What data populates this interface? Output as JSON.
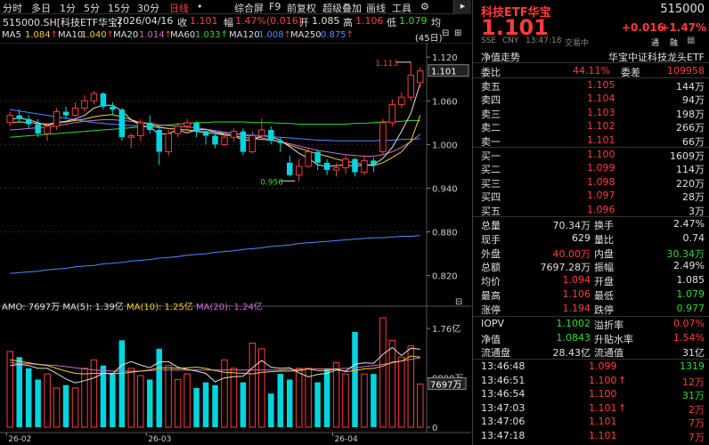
{
  "menu": {
    "items": [
      "分时",
      "多日",
      "1分",
      "5分",
      "15分",
      "30分",
      "日线",
      "•"
    ],
    "right_items": [
      "综合屏",
      "F9",
      "前复权",
      "超级叠加",
      "画线",
      "工具"
    ],
    "gear_icon": "gear-icon"
  },
  "info": {
    "name": "515000.SH[科技ETF华宝]",
    "date": "2026/04/16",
    "close_label": "收",
    "close": "1.101",
    "change_label": "幅",
    "change": "1.47%(0.016)",
    "open_label": "开",
    "open": "1.085",
    "high_label": "高",
    "high": "1.106",
    "low_label": "低",
    "low": "1.079",
    "avg_label": "均"
  },
  "ma": {
    "ma5": "MA5",
    "ma5_val": "1.084",
    "ma10": "MA10",
    "ma10_val": "1.040",
    "ma20": "MA20",
    "ma20_val": "1.014",
    "ma60": "MA60",
    "ma60_val": "1.033",
    "ma120": "MA120",
    "ma120_val": "1.008",
    "ma250": "MA250",
    "ma250_val": "0.875",
    "days": "(45日)"
  },
  "price_axis": [
    "1.120",
    "1.101",
    "1.060",
    "1.000",
    "0.940",
    "0.880",
    "0.820"
  ],
  "annot_high": "1.113",
  "annot_low": "0.956",
  "vol": {
    "label": "AMO: 7697万",
    "ma5": "MA(5): 1.39亿",
    "ma10": "MA(10): 1.25亿",
    "ma20": "MA(20): 1.24亿",
    "axis": [
      "1.76亿",
      "8800万",
      "0"
    ],
    "current": "7697万"
  },
  "date_axis": [
    "26-02",
    "26-03",
    "26-04"
  ],
  "chart_data": {
    "type": "candlestick",
    "ylim": [
      0.8,
      1.13
    ],
    "candles": [
      [
        1.03,
        1.04,
        1.045,
        1.025
      ],
      [
        1.04,
        1.035,
        1.048,
        1.03
      ],
      [
        1.035,
        1.028,
        1.04,
        1.022
      ],
      [
        1.028,
        1.015,
        1.035,
        1.01
      ],
      [
        1.015,
        1.025,
        1.03,
        1.005
      ],
      [
        1.025,
        1.045,
        1.05,
        1.02
      ],
      [
        1.045,
        1.04,
        1.052,
        1.035
      ],
      [
        1.04,
        1.05,
        1.058,
        1.038
      ],
      [
        1.05,
        1.06,
        1.068,
        1.045
      ],
      [
        1.06,
        1.07,
        1.073,
        1.055
      ],
      [
        1.07,
        1.052,
        1.072,
        1.048
      ],
      [
        1.052,
        1.048,
        1.058,
        1.04
      ],
      [
        1.048,
        1.01,
        1.05,
        1.005
      ],
      [
        1.01,
        1.012,
        1.015,
        0.995
      ],
      [
        1.012,
        1.03,
        1.035,
        1.005
      ],
      [
        1.03,
        1.02,
        1.04,
        1.015
      ],
      [
        1.02,
        0.99,
        1.025,
        0.972
      ],
      [
        0.99,
        1.015,
        1.02,
        0.985
      ],
      [
        1.015,
        1.025,
        1.03,
        1.01
      ],
      [
        1.025,
        1.03,
        1.035,
        1.018
      ],
      [
        1.03,
        1.018,
        1.032,
        1.01
      ],
      [
        1.018,
        1.012,
        1.022,
        1.0
      ],
      [
        1.012,
        1.0,
        1.02,
        0.995
      ],
      [
        1.0,
        1.01,
        1.015,
        0.998
      ],
      [
        1.01,
        1.018,
        1.022,
        1.005
      ],
      [
        1.018,
        0.99,
        1.022,
        0.985
      ],
      [
        0.99,
        1.012,
        1.018,
        0.988
      ],
      [
        1.012,
        1.02,
        1.036,
        1.008
      ],
      [
        1.02,
        1.005,
        1.025,
        1.0
      ],
      [
        1.005,
        1.002,
        1.01,
        0.99
      ],
      [
        0.975,
        0.958,
        0.985,
        0.956
      ],
      [
        0.958,
        0.97,
        0.98,
        0.95
      ],
      [
        0.97,
        0.99,
        0.995,
        0.968
      ],
      [
        0.99,
        0.975,
        0.992,
        0.965
      ],
      [
        0.975,
        0.965,
        0.98,
        0.958
      ],
      [
        0.965,
        0.968,
        0.975,
        0.956
      ],
      [
        0.968,
        0.98,
        0.985,
        0.96
      ],
      [
        0.98,
        0.962,
        0.982,
        0.956
      ],
      [
        0.962,
        0.978,
        0.985,
        0.958
      ],
      [
        0.978,
        0.972,
        0.982,
        0.962
      ],
      [
        0.99,
        1.03,
        1.035,
        0.985
      ],
      [
        1.03,
        1.055,
        1.062,
        1.025
      ],
      [
        1.055,
        1.065,
        1.072,
        1.05
      ],
      [
        1.065,
        1.095,
        1.113,
        1.06
      ],
      [
        1.085,
        1.101,
        1.106,
        1.079
      ]
    ],
    "volume": [
      1.35,
      1.25,
      1.05,
      0.85,
      0.95,
      0.7,
      0.75,
      0.7,
      1.05,
      1.2,
      1.1,
      0.95,
      1.55,
      1.05,
      0.92,
      0.85,
      1.4,
      1.1,
      0.85,
      0.95,
      0.7,
      0.8,
      0.75,
      1.2,
      1.05,
      0.8,
      1.5,
      1.4,
      0.6,
      0.95,
      0.85,
      1.05,
      1.05,
      0.8,
      1.05,
      1.15,
      0.95,
      1.7,
      0.95,
      0.95,
      1.95,
      1.55,
      1.25,
      1.45,
      0.77
    ],
    "ma5": [
      1.035,
      1.036,
      1.034,
      1.03,
      1.026,
      1.03,
      1.032,
      1.035,
      1.04,
      1.05,
      1.054,
      1.054,
      1.046,
      1.034,
      1.026,
      1.024,
      1.014,
      1.015,
      1.02,
      1.016,
      1.02,
      1.021,
      1.017,
      1.014,
      1.012,
      1.006,
      1.006,
      1.012,
      1.011,
      1.006,
      0.997,
      0.988,
      0.981,
      0.972,
      0.97,
      0.971,
      0.972,
      0.97,
      0.972,
      0.972,
      0.981,
      0.996,
      1.018,
      1.043,
      1.084
    ],
    "ma10": [
      1.03,
      1.031,
      1.03,
      1.029,
      1.028,
      1.03,
      1.031,
      1.033,
      1.035,
      1.038,
      1.04,
      1.041,
      1.038,
      1.034,
      1.03,
      1.028,
      1.024,
      1.022,
      1.021,
      1.02,
      1.018,
      1.016,
      1.015,
      1.013,
      1.012,
      1.01,
      1.008,
      1.007,
      1.006,
      1.004,
      0.999,
      0.995,
      0.991,
      0.987,
      0.984,
      0.98,
      0.977,
      0.975,
      0.972,
      0.971,
      0.975,
      0.982,
      0.99,
      1.005,
      1.04
    ],
    "ma20": [
      1.02,
      1.021,
      1.022,
      1.023,
      1.024,
      1.026,
      1.028,
      1.03,
      1.032,
      1.033,
      1.034,
      1.034,
      1.033,
      1.032,
      1.03,
      1.029,
      1.027,
      1.026,
      1.025,
      1.024,
      1.023,
      1.021,
      1.019,
      1.017,
      1.015,
      1.013,
      1.011,
      1.009,
      1.007,
      1.004,
      1.001,
      0.998,
      0.995,
      0.992,
      0.99,
      0.988,
      0.986,
      0.985,
      0.984,
      0.984,
      0.986,
      0.99,
      0.996,
      1.004,
      1.014
    ],
    "ma60": [
      1.01,
      1.011,
      1.012,
      1.013,
      1.014,
      1.015,
      1.016,
      1.017,
      1.018,
      1.019,
      1.02,
      1.021,
      1.022,
      1.023,
      1.024,
      1.025,
      1.026,
      1.027,
      1.028,
      1.029,
      1.03,
      1.03,
      1.031,
      1.031,
      1.031,
      1.031,
      1.03,
      1.03,
      1.03,
      1.029,
      1.029,
      1.028,
      1.028,
      1.028,
      1.028,
      1.028,
      1.028,
      1.029,
      1.029,
      1.03,
      1.031,
      1.031,
      1.032,
      1.033,
      1.033
    ],
    "ma120": [
      1.048,
      1.046,
      1.044,
      1.042,
      1.04,
      1.038,
      1.036,
      1.034,
      1.032,
      1.03,
      1.029,
      1.028,
      1.027,
      1.026,
      1.025,
      1.024,
      1.023,
      1.022,
      1.021,
      1.02,
      1.019,
      1.018,
      1.017,
      1.016,
      1.015,
      1.014,
      1.013,
      1.012,
      1.011,
      1.01,
      1.009,
      1.008,
      1.007,
      1.006,
      1.006,
      1.005,
      1.005,
      1.005,
      1.005,
      1.005,
      1.006,
      1.006,
      1.007,
      1.007,
      1.008
    ],
    "ma250": [
      0.823,
      0.824,
      0.825,
      0.826,
      0.828,
      0.829,
      0.83,
      0.832,
      0.833,
      0.834,
      0.836,
      0.837,
      0.838,
      0.84,
      0.841,
      0.842,
      0.844,
      0.845,
      0.846,
      0.848,
      0.849,
      0.85,
      0.852,
      0.853,
      0.854,
      0.856,
      0.857,
      0.858,
      0.86,
      0.861,
      0.862,
      0.864,
      0.865,
      0.866,
      0.867,
      0.868,
      0.869,
      0.87,
      0.871,
      0.872,
      0.872,
      0.873,
      0.874,
      0.874,
      0.875
    ],
    "vol_ma5": [
      1.1,
      1.12,
      1.1,
      1.05,
      1.05,
      0.96,
      0.86,
      0.79,
      0.83,
      0.88,
      0.96,
      0.95,
      1.11,
      1.17,
      1.11,
      1.06,
      1.16,
      1.17,
      1.07,
      1.03,
      1.0,
      0.96,
      0.81,
      0.88,
      0.9,
      0.91,
      1.06,
      1.19,
      1.07,
      1.05,
      1.06,
      0.97,
      0.9,
      0.94,
      0.96,
      1.02,
      1.0,
      1.12,
      1.15,
      1.14,
      1.3,
      1.42,
      1.28,
      1.41,
      1.39
    ],
    "vol_ma10": [
      1.2,
      1.18,
      1.15,
      1.12,
      1.1,
      1.05,
      1.0,
      0.96,
      0.95,
      0.96,
      0.96,
      0.96,
      0.96,
      0.98,
      1.0,
      1.02,
      1.06,
      1.06,
      1.05,
      1.06,
      1.07,
      1.05,
      1.01,
      0.98,
      0.97,
      0.96,
      0.95,
      0.98,
      0.99,
      1.0,
      1.0,
      1.01,
      1.04,
      1.01,
      1.01,
      1.04,
      0.99,
      1.01,
      1.04,
      1.05,
      1.09,
      1.16,
      1.18,
      1.27,
      1.25
    ],
    "vol_ma20": [
      1.15,
      1.14,
      1.13,
      1.12,
      1.11,
      1.1,
      1.08,
      1.06,
      1.04,
      1.02,
      1.01,
      1.0,
      1.0,
      1.0,
      1.0,
      1.01,
      1.02,
      1.02,
      1.02,
      1.02,
      1.02,
      1.02,
      1.02,
      1.02,
      1.02,
      1.02,
      1.02,
      1.02,
      1.02,
      1.02,
      1.03,
      1.03,
      1.04,
      1.04,
      1.04,
      1.04,
      1.05,
      1.06,
      1.08,
      1.1,
      1.12,
      1.15,
      1.18,
      1.21,
      1.24
    ]
  },
  "panel": {
    "title": "科技ETF华宝",
    "code": "515000",
    "price": "1.101",
    "change": "+0.016",
    "change_pct": "+1.47%",
    "sse": "SSE",
    "cny": "CNY",
    "time": "13:47:18",
    "status": "交易中",
    "tong": "通",
    "rong": "融",
    "nav_trend": "净值走势",
    "fund_name": "华宝中证科技龙头ETF",
    "weibi_label": "委比",
    "weibi": "44.11%",
    "weicha_label": "委差",
    "weicha": "109958",
    "asks": [
      {
        "label": "卖五",
        "price": "1.105",
        "vol": "144万"
      },
      {
        "label": "卖四",
        "price": "1.104",
        "vol": "94万"
      },
      {
        "label": "卖三",
        "price": "1.103",
        "vol": "198万"
      },
      {
        "label": "卖二",
        "price": "1.102",
        "vol": "266万"
      },
      {
        "label": "卖一",
        "price": "1.101",
        "vol": "66万"
      }
    ],
    "bids": [
      {
        "label": "买一",
        "price": "1.100",
        "vol": "1609万"
      },
      {
        "label": "买二",
        "price": "1.099",
        "vol": "114万"
      },
      {
        "label": "买三",
        "price": "1.098",
        "vol": "220万"
      },
      {
        "label": "买四",
        "price": "1.097",
        "vol": "28万"
      },
      {
        "label": "买五",
        "price": "1.096",
        "vol": "3万"
      }
    ],
    "stats": [
      {
        "l1": "总量",
        "v1": "70.34万",
        "c1": "white",
        "l2": "换手",
        "v2": "2.47%",
        "c2": "white"
      },
      {
        "l1": "现手",
        "v1": "629",
        "c1": "white",
        "l2": "量比",
        "v2": "0.74",
        "c2": "white"
      },
      {
        "l1": "外盘",
        "v1": "40.00万",
        "c1": "red",
        "l2": "内盘",
        "v2": "30.34万",
        "c2": "green"
      },
      {
        "l1": "总额",
        "v1": "7697.28万",
        "c1": "white",
        "l2": "振幅",
        "v2": "2.49%",
        "c2": "white"
      },
      {
        "l1": "均价",
        "v1": "1.094",
        "c1": "red",
        "l2": "开盘",
        "v2": "1.085",
        "c2": "white"
      },
      {
        "l1": "最高",
        "v1": "1.106",
        "c1": "red",
        "l2": "最低",
        "v2": "1.079",
        "c2": "green"
      },
      {
        "l1": "涨停",
        "v1": "1.194",
        "c1": "red",
        "l2": "跌停",
        "v2": "0.977",
        "c2": "green"
      }
    ],
    "nav": [
      {
        "l1": "IOPV",
        "v1": "1.1002",
        "c1": "green",
        "l2": "溢折率",
        "v2": "0.07%",
        "c2": "red"
      },
      {
        "l1": "净值",
        "v1": "1.0843",
        "c1": "green",
        "l2": "升贴水率",
        "v2": "1.54%",
        "c2": "red"
      },
      {
        "l1": "流通盘",
        "v1": "28.43亿",
        "c1": "white",
        "l2": "流通值",
        "v2": "31亿",
        "c2": "white"
      }
    ],
    "ticks": [
      {
        "time": "13:46:48",
        "price": "1.099",
        "pc": "red",
        "arrow": "",
        "vol": "1319",
        "vc": "green"
      },
      {
        "time": "13:46:51",
        "price": "1.100",
        "pc": "red",
        "arrow": "↑",
        "vol": "12万",
        "vc": "red"
      },
      {
        "time": "13:46:54",
        "price": "1.100",
        "pc": "red",
        "arrow": "",
        "vol": "31万",
        "vc": "green"
      },
      {
        "time": "13:47:03",
        "price": "1.101",
        "pc": "red",
        "arrow": "↑",
        "vol": "2万",
        "vc": "red"
      },
      {
        "time": "13:47:06",
        "price": "1.101",
        "pc": "red",
        "arrow": "",
        "vol": "7万",
        "vc": "red"
      },
      {
        "time": "13:47:18",
        "price": "1.101",
        "pc": "red",
        "arrow": "",
        "vol": "7万",
        "vc": "red"
      }
    ]
  },
  "colors": {
    "up": "#ff3b3b",
    "down": "#00d5e0",
    "ma5": "#e0e0e0",
    "ma10": "#f2d12e",
    "ma20": "#d36ad6",
    "ma60": "#2fdb2f",
    "ma120": "#4a8cff",
    "ma250": "#4a8cff"
  }
}
